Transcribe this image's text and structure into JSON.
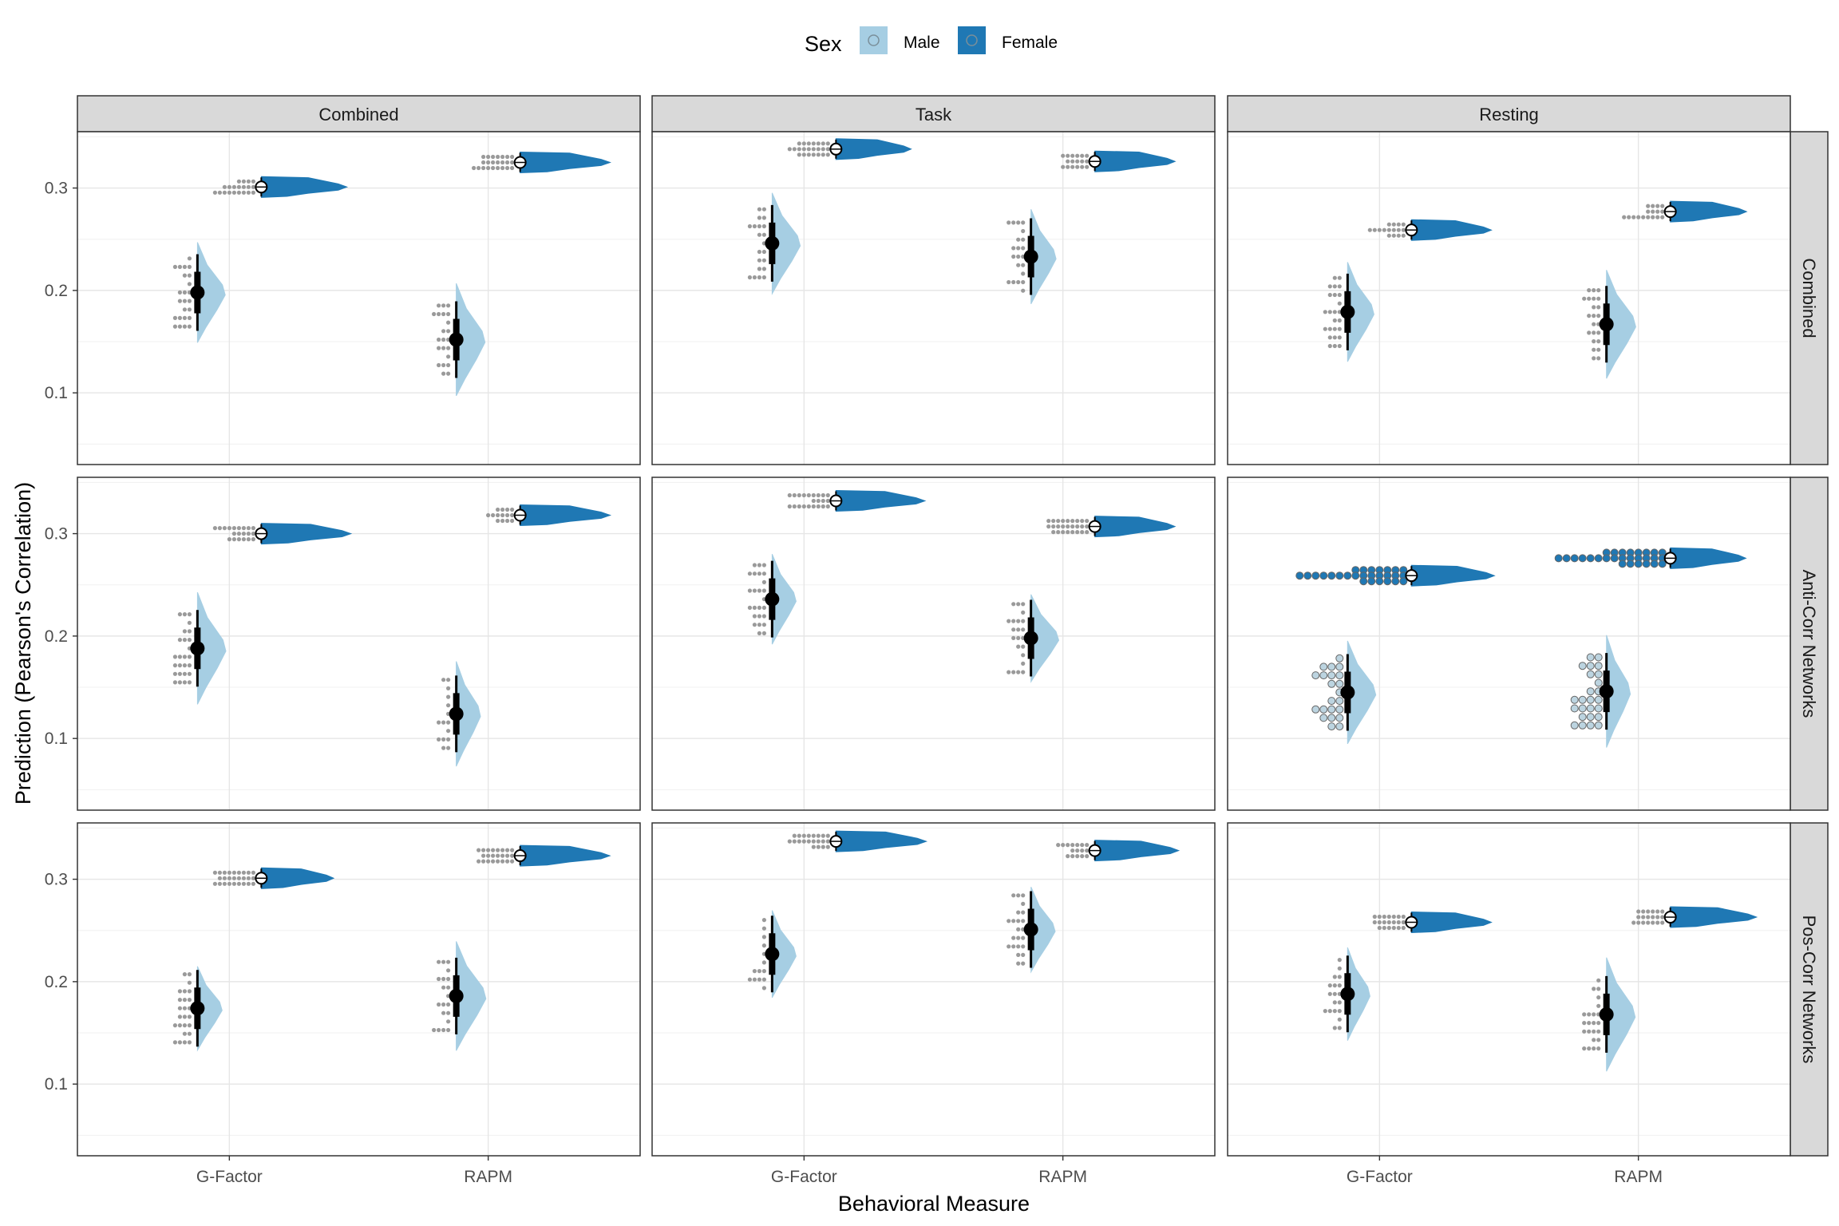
{
  "chart_data": {
    "type": "raincloud",
    "xlabel": "Behavioral Measure",
    "ylabel": "Prediction (Pearson's Correlation)",
    "categories": [
      "G-Factor",
      "RAPM"
    ],
    "y_ticks": [
      "0.1",
      "0.2",
      "0.3"
    ],
    "ylim": [
      0.03,
      0.355
    ],
    "grid": true,
    "legend": {
      "title": "Sex",
      "position": "top",
      "entries": [
        {
          "name": "Male",
          "color": "#a6cee3"
        },
        {
          "name": "Female",
          "color": "#1f78b4"
        }
      ]
    },
    "col_facets": [
      "Combined",
      "Task",
      "Resting"
    ],
    "row_facets": [
      "Combined",
      "Anti-Corr Networks",
      "Pos-Corr Networks"
    ],
    "series": [
      {
        "name": "Male",
        "values": [
          [
            [
              0.198,
              0.152
            ],
            [
              0.246,
              0.233
            ],
            [
              0.179,
              0.167
            ]
          ],
          [
            [
              0.188,
              0.124
            ],
            [
              0.236,
              0.198
            ],
            [
              0.145,
              0.146
            ]
          ],
          [
            [
              0.174,
              0.186
            ],
            [
              0.227,
              0.251
            ],
            [
              0.188,
              0.168
            ]
          ]
        ]
      },
      {
        "name": "Female",
        "values": [
          [
            [
              0.301,
              0.325
            ],
            [
              0.338,
              0.326
            ],
            [
              0.259,
              0.277
            ]
          ],
          [
            [
              0.3,
              0.318
            ],
            [
              0.332,
              0.307
            ],
            [
              0.259,
              0.276
            ]
          ],
          [
            [
              0.301,
              0.323
            ],
            [
              0.337,
              0.328
            ],
            [
              0.258,
              0.263
            ]
          ]
        ]
      }
    ]
  }
}
